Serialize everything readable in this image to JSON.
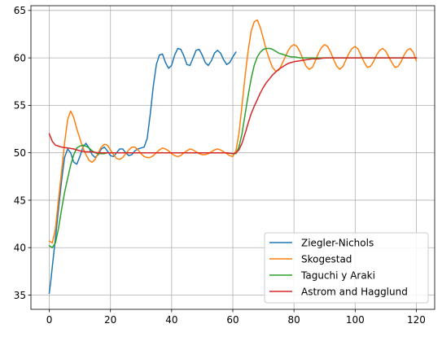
{
  "chart_data": {
    "type": "line",
    "title": "",
    "xlabel": "",
    "ylabel": "",
    "xlim": [
      -6,
      126
    ],
    "ylim": [
      33.5,
      65.5
    ],
    "xticks": [
      0,
      20,
      40,
      60,
      80,
      100,
      120
    ],
    "yticks": [
      35,
      40,
      45,
      50,
      55,
      60,
      65
    ],
    "grid": true,
    "legend": {
      "placement": "bottom-right",
      "entries": [
        "Ziegler-Nichols",
        "Skogestad",
        "Taguchi y Araki",
        "Astrom and Hagglund"
      ]
    },
    "series": [
      {
        "name": "Ziegler-Nichols",
        "color": "#1f77b4",
        "points": [
          [
            0,
            35.2
          ],
          [
            0.5,
            36.5
          ],
          [
            1,
            38
          ],
          [
            2,
            41
          ],
          [
            3,
            44
          ],
          [
            4,
            47
          ],
          [
            5,
            49.5
          ],
          [
            6,
            50.4
          ],
          [
            7,
            50
          ],
          [
            8,
            49
          ],
          [
            9,
            48.8
          ],
          [
            10,
            49.6
          ],
          [
            11,
            50.6
          ],
          [
            12,
            51
          ],
          [
            13,
            50.5
          ],
          [
            14,
            49.8
          ],
          [
            15,
            49.5
          ],
          [
            16,
            49.8
          ],
          [
            17,
            50.4
          ],
          [
            18,
            50.6
          ],
          [
            19,
            50.2
          ],
          [
            20,
            49.7
          ],
          [
            21,
            49.6
          ],
          [
            22,
            50
          ],
          [
            23,
            50.4
          ],
          [
            24,
            50.4
          ],
          [
            25,
            50
          ],
          [
            26,
            49.7
          ],
          [
            27,
            49.8
          ],
          [
            28,
            50.2
          ],
          [
            29,
            50.4
          ],
          [
            30,
            50.5
          ],
          [
            31,
            50.6
          ],
          [
            32,
            51.5
          ],
          [
            33,
            54
          ],
          [
            34,
            57
          ],
          [
            35,
            59.3
          ],
          [
            36,
            60.3
          ],
          [
            37,
            60.4
          ],
          [
            38,
            59.5
          ],
          [
            39,
            58.9
          ],
          [
            40,
            59.2
          ],
          [
            41,
            60.3
          ],
          [
            42,
            61
          ],
          [
            43,
            60.9
          ],
          [
            44,
            60.2
          ],
          [
            45,
            59.3
          ],
          [
            46,
            59.2
          ],
          [
            47,
            60
          ],
          [
            48,
            60.8
          ],
          [
            49,
            60.9
          ],
          [
            50,
            60.3
          ],
          [
            51,
            59.5
          ],
          [
            52,
            59.2
          ],
          [
            53,
            59.7
          ],
          [
            54,
            60.5
          ],
          [
            55,
            60.8
          ],
          [
            56,
            60.5
          ],
          [
            57,
            59.8
          ],
          [
            58,
            59.3
          ],
          [
            59,
            59.5
          ],
          [
            60,
            60.1
          ],
          [
            61,
            60.6
          ]
        ]
      },
      {
        "name": "Skogestad",
        "color": "#ff7f0e",
        "points": [
          [
            0,
            40.7
          ],
          [
            1,
            40.5
          ],
          [
            2,
            42
          ],
          [
            3,
            45
          ],
          [
            4,
            48
          ],
          [
            5,
            51
          ],
          [
            6,
            53.5
          ],
          [
            7,
            54.4
          ],
          [
            8,
            53.7
          ],
          [
            9,
            52.5
          ],
          [
            10,
            51.5
          ],
          [
            11,
            50.5
          ],
          [
            12,
            49.8
          ],
          [
            13,
            49.2
          ],
          [
            14,
            49
          ],
          [
            15,
            49.3
          ],
          [
            16,
            50
          ],
          [
            17,
            50.6
          ],
          [
            18,
            50.9
          ],
          [
            19,
            50.8
          ],
          [
            20,
            50.3
          ],
          [
            21,
            49.8
          ],
          [
            22,
            49.4
          ],
          [
            23,
            49.3
          ],
          [
            24,
            49.5
          ],
          [
            25,
            49.9
          ],
          [
            26,
            50.3
          ],
          [
            27,
            50.6
          ],
          [
            28,
            50.6
          ],
          [
            29,
            50.3
          ],
          [
            30,
            49.9
          ],
          [
            31,
            49.6
          ],
          [
            32,
            49.5
          ],
          [
            33,
            49.5
          ],
          [
            34,
            49.7
          ],
          [
            35,
            50
          ],
          [
            36,
            50.3
          ],
          [
            37,
            50.5
          ],
          [
            38,
            50.4
          ],
          [
            39,
            50.2
          ],
          [
            40,
            49.9
          ],
          [
            41,
            49.7
          ],
          [
            42,
            49.6
          ],
          [
            43,
            49.7
          ],
          [
            44,
            50
          ],
          [
            45,
            50.2
          ],
          [
            46,
            50.4
          ],
          [
            47,
            50.3
          ],
          [
            48,
            50.1
          ],
          [
            49,
            49.9
          ],
          [
            50,
            49.8
          ],
          [
            51,
            49.8
          ],
          [
            52,
            49.9
          ],
          [
            53,
            50.1
          ],
          [
            54,
            50.3
          ],
          [
            55,
            50.4
          ],
          [
            56,
            50.3
          ],
          [
            57,
            50.1
          ],
          [
            58,
            49.9
          ],
          [
            59,
            49.7
          ],
          [
            60,
            49.6
          ],
          [
            61,
            50.2
          ],
          [
            62,
            52
          ],
          [
            63,
            55
          ],
          [
            64,
            58
          ],
          [
            65,
            60.7
          ],
          [
            66,
            62.8
          ],
          [
            67,
            63.8
          ],
          [
            68,
            64
          ],
          [
            69,
            63.2
          ],
          [
            70,
            62
          ],
          [
            71,
            60.8
          ],
          [
            72,
            59.8
          ],
          [
            73,
            59
          ],
          [
            74,
            58.6
          ],
          [
            75,
            58.7
          ],
          [
            76,
            59.3
          ],
          [
            77,
            60
          ],
          [
            78,
            60.7
          ],
          [
            79,
            61.2
          ],
          [
            80,
            61.4
          ],
          [
            81,
            61.2
          ],
          [
            82,
            60.6
          ],
          [
            83,
            59.8
          ],
          [
            84,
            59.1
          ],
          [
            85,
            58.8
          ],
          [
            86,
            59
          ],
          [
            87,
            59.7
          ],
          [
            88,
            60.5
          ],
          [
            89,
            61.1
          ],
          [
            90,
            61.4
          ],
          [
            91,
            61.2
          ],
          [
            92,
            60.6
          ],
          [
            93,
            59.8
          ],
          [
            94,
            59.1
          ],
          [
            95,
            58.8
          ],
          [
            96,
            59.1
          ],
          [
            97,
            59.8
          ],
          [
            98,
            60.5
          ],
          [
            99,
            61
          ],
          [
            100,
            61.2
          ],
          [
            101,
            60.9
          ],
          [
            102,
            60.2
          ],
          [
            103,
            59.5
          ],
          [
            104,
            59
          ],
          [
            105,
            59.1
          ],
          [
            106,
            59.6
          ],
          [
            107,
            60.3
          ],
          [
            108,
            60.8
          ],
          [
            109,
            61
          ],
          [
            110,
            60.7
          ],
          [
            111,
            60.1
          ],
          [
            112,
            59.5
          ],
          [
            113,
            59
          ],
          [
            114,
            59.1
          ],
          [
            115,
            59.6
          ],
          [
            116,
            60.3
          ],
          [
            117,
            60.8
          ],
          [
            118,
            61
          ],
          [
            119,
            60.6
          ],
          [
            120,
            59.7
          ]
        ]
      },
      {
        "name": "Taguchi y Araki",
        "color": "#2ca02c",
        "points": [
          [
            0,
            40.2
          ],
          [
            1,
            40
          ],
          [
            2,
            40.5
          ],
          [
            3,
            42
          ],
          [
            4,
            44
          ],
          [
            5,
            45.8
          ],
          [
            6,
            47.3
          ],
          [
            7,
            48.7
          ],
          [
            8,
            49.8
          ],
          [
            9,
            50.5
          ],
          [
            10,
            50.7
          ],
          [
            11,
            50.8
          ],
          [
            12,
            50.7
          ],
          [
            13,
            50.5
          ],
          [
            14,
            50.2
          ],
          [
            15,
            50
          ],
          [
            16,
            49.9
          ],
          [
            17,
            49.9
          ],
          [
            18,
            49.9
          ],
          [
            19,
            50
          ],
          [
            20,
            50
          ],
          [
            22,
            50
          ],
          [
            24,
            50
          ],
          [
            26,
            50
          ],
          [
            28,
            50
          ],
          [
            30,
            50
          ],
          [
            32,
            50
          ],
          [
            34,
            50
          ],
          [
            36,
            50
          ],
          [
            38,
            50
          ],
          [
            40,
            50
          ],
          [
            42,
            50
          ],
          [
            44,
            50
          ],
          [
            46,
            50
          ],
          [
            48,
            50
          ],
          [
            50,
            50
          ],
          [
            52,
            50
          ],
          [
            54,
            50
          ],
          [
            56,
            50
          ],
          [
            58,
            50
          ],
          [
            60,
            49.9
          ],
          [
            61,
            49.9
          ],
          [
            62,
            50.6
          ],
          [
            63,
            52
          ],
          [
            64,
            54
          ],
          [
            65,
            56
          ],
          [
            66,
            57.8
          ],
          [
            67,
            59.2
          ],
          [
            68,
            60.1
          ],
          [
            69,
            60.6
          ],
          [
            70,
            60.9
          ],
          [
            71,
            61
          ],
          [
            72,
            61
          ],
          [
            73,
            60.9
          ],
          [
            74,
            60.7
          ],
          [
            75,
            60.5
          ],
          [
            76,
            60.4
          ],
          [
            77,
            60.3
          ],
          [
            78,
            60.2
          ],
          [
            79,
            60.1
          ],
          [
            80,
            60.1
          ],
          [
            82,
            60
          ],
          [
            84,
            60
          ],
          [
            86,
            60
          ],
          [
            88,
            60
          ],
          [
            90,
            60
          ],
          [
            95,
            60
          ],
          [
            100,
            60
          ],
          [
            105,
            60
          ],
          [
            110,
            60
          ],
          [
            115,
            60
          ],
          [
            120,
            60
          ]
        ]
      },
      {
        "name": "Astrom and Hagglund",
        "color": "#d62728",
        "points": [
          [
            0,
            52
          ],
          [
            1,
            51.2
          ],
          [
            2,
            50.8
          ],
          [
            3,
            50.7
          ],
          [
            4,
            50.6
          ],
          [
            6,
            50.5
          ],
          [
            8,
            50.4
          ],
          [
            10,
            50.2
          ],
          [
            12,
            50.1
          ],
          [
            14,
            50.1
          ],
          [
            16,
            50
          ],
          [
            20,
            50
          ],
          [
            25,
            50
          ],
          [
            30,
            50
          ],
          [
            35,
            50
          ],
          [
            40,
            50
          ],
          [
            45,
            50
          ],
          [
            50,
            50
          ],
          [
            55,
            50
          ],
          [
            58,
            50
          ],
          [
            60,
            49.9
          ],
          [
            61,
            50
          ],
          [
            62,
            50.3
          ],
          [
            63,
            51
          ],
          [
            64,
            52
          ],
          [
            65,
            53.1
          ],
          [
            66,
            54.1
          ],
          [
            67,
            54.9
          ],
          [
            68,
            55.6
          ],
          [
            69,
            56.3
          ],
          [
            70,
            56.9
          ],
          [
            71,
            57.4
          ],
          [
            72,
            57.8
          ],
          [
            73,
            58.2
          ],
          [
            74,
            58.5
          ],
          [
            75,
            58.8
          ],
          [
            76,
            59
          ],
          [
            77,
            59.2
          ],
          [
            78,
            59.4
          ],
          [
            79,
            59.5
          ],
          [
            80,
            59.6
          ],
          [
            82,
            59.7
          ],
          [
            84,
            59.8
          ],
          [
            86,
            59.9
          ],
          [
            88,
            59.9
          ],
          [
            90,
            60
          ],
          [
            95,
            60
          ],
          [
            100,
            60
          ],
          [
            105,
            60
          ],
          [
            110,
            60
          ],
          [
            115,
            60
          ],
          [
            120,
            60
          ]
        ]
      }
    ]
  }
}
